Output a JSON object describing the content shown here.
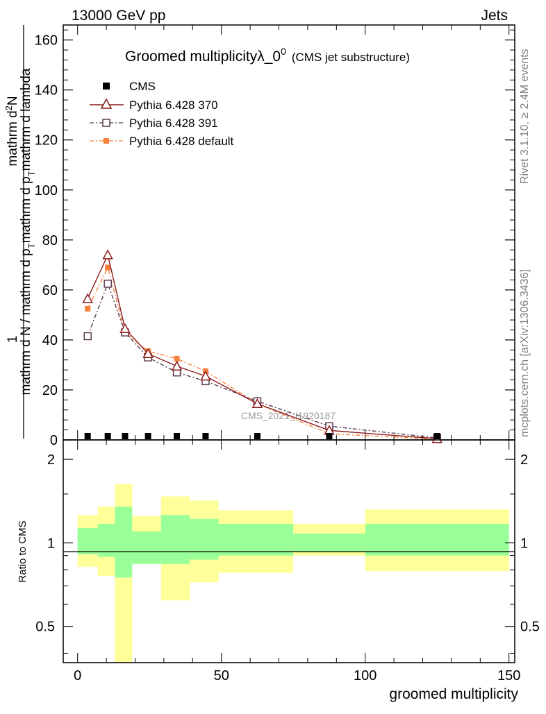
{
  "header": {
    "left": "13000 GeV pp",
    "right": "Jets"
  },
  "side_labels": {
    "rivet": "Rivet 3.1.10, ≥ 2.4M events",
    "mcplots": "mcplots.cern.ch [arXiv:1306.3436]"
  },
  "watermark": "CMS_2021_I1920187",
  "colors": {
    "cms": "#000000",
    "p370": "#8b1a1a",
    "p391": "#5c3a4e",
    "pdef": "#f5813b",
    "band_inner": "#99ff99",
    "band_outer": "#ffff99"
  },
  "chart_data": [
    {
      "type": "line",
      "title": "Groomed multiplicityλ_0",
      "title_sup": "0",
      "subtitle": "(CMS jet substructure)",
      "ylabel_top": "1",
      "ylabel_bottom": "mathrm d N / mathrm d p",
      "ylabel_bottom_sub": "T",
      "ylabel_bottom_rest": "mathrm d p",
      "ylabel_bottom_rest_sub": "T",
      "ylabel_bottom_end": "mathrm d lambda",
      "ylabel_numerator": "mathrm d",
      "ylabel_numerator_sup": "2",
      "ylabel_numerator_end": "N",
      "ylabel_full": "mathrm d N / mathrm d p_T mathrm d p_T mathrm d lambda",
      "xlim": [
        -5,
        152
      ],
      "ylim": [
        0,
        166
      ],
      "yticks": [
        "0",
        "20",
        "40",
        "60",
        "80",
        "100",
        "120",
        "140",
        "160"
      ],
      "ytick_values": [
        0,
        20,
        40,
        60,
        80,
        100,
        120,
        140,
        160
      ],
      "series": [
        {
          "name": "CMS",
          "x": [
            3.5,
            10.5,
            16.5,
            24.5,
            34.5,
            44.5,
            62.5,
            87.5,
            125
          ],
          "y": [
            0.3,
            0.3,
            0.3,
            0.3,
            0.3,
            0.3,
            0.3,
            0.3,
            0.3
          ]
        },
        {
          "name": "Pythia 6.428 370",
          "x": [
            3.5,
            10.5,
            16.5,
            24.5,
            34.5,
            44.5,
            62.5,
            87.5,
            125
          ],
          "y": [
            56.5,
            74,
            44.5,
            34.5,
            29.5,
            25.5,
            14.5,
            3.8,
            0.5
          ]
        },
        {
          "name": "Pythia 6.428 391",
          "x": [
            3.5,
            10.5,
            16.5,
            24.5,
            34.5,
            44.5,
            62.5,
            87.5,
            125
          ],
          "y": [
            41.5,
            62.5,
            43,
            33,
            27,
            23.5,
            15.5,
            5.5,
            0.8
          ]
        },
        {
          "name": "Pythia 6.428 default",
          "x": [
            3.5,
            10.5,
            16.5,
            24.5,
            34.5,
            44.5,
            62.5,
            87.5,
            125
          ],
          "y": [
            52.5,
            69,
            43,
            35.5,
            32.5,
            27.5,
            14.5,
            2.5,
            0.3
          ]
        }
      ]
    },
    {
      "type": "area",
      "ylabel": "Ratio to CMS",
      "xlabel": "groomed multiplicity",
      "xlim": [
        -5,
        152
      ],
      "ylim": [
        0.37,
        2.35
      ],
      "xticks": [
        "0",
        "50",
        "100",
        "150"
      ],
      "xtick_values": [
        0,
        50,
        100,
        150
      ],
      "yticks": [
        "0.5",
        "1",
        "2"
      ],
      "ytick_values": [
        0.5,
        1,
        2
      ],
      "bins": [
        {
          "lo": 0,
          "hi": 7,
          "inner": [
            0.91,
            1.13
          ],
          "outer": [
            0.82,
            1.26
          ]
        },
        {
          "lo": 7,
          "hi": 13,
          "inner": [
            0.89,
            1.17
          ],
          "outer": [
            0.76,
            1.35
          ]
        },
        {
          "lo": 13,
          "hi": 19,
          "inner": [
            0.75,
            1.35
          ],
          "outer": [
            0.37,
            1.63
          ]
        },
        {
          "lo": 19,
          "hi": 29,
          "inner": [
            0.84,
            1.1
          ],
          "outer": [
            0.84,
            1.25
          ]
        },
        {
          "lo": 29,
          "hi": 39,
          "inner": [
            0.84,
            1.26
          ],
          "outer": [
            0.62,
            1.47
          ]
        },
        {
          "lo": 39,
          "hi": 49,
          "inner": [
            0.87,
            1.22
          ],
          "outer": [
            0.72,
            1.42
          ]
        },
        {
          "lo": 49,
          "hi": 75,
          "inner": [
            0.9,
            1.17
          ],
          "outer": [
            0.78,
            1.31
          ]
        },
        {
          "lo": 75,
          "hi": 100,
          "inner": [
            0.93,
            1.08
          ],
          "outer": [
            0.9,
            1.17
          ]
        },
        {
          "lo": 100,
          "hi": 150,
          "inner": [
            0.9,
            1.17
          ],
          "outer": [
            0.79,
            1.32
          ]
        }
      ]
    }
  ]
}
